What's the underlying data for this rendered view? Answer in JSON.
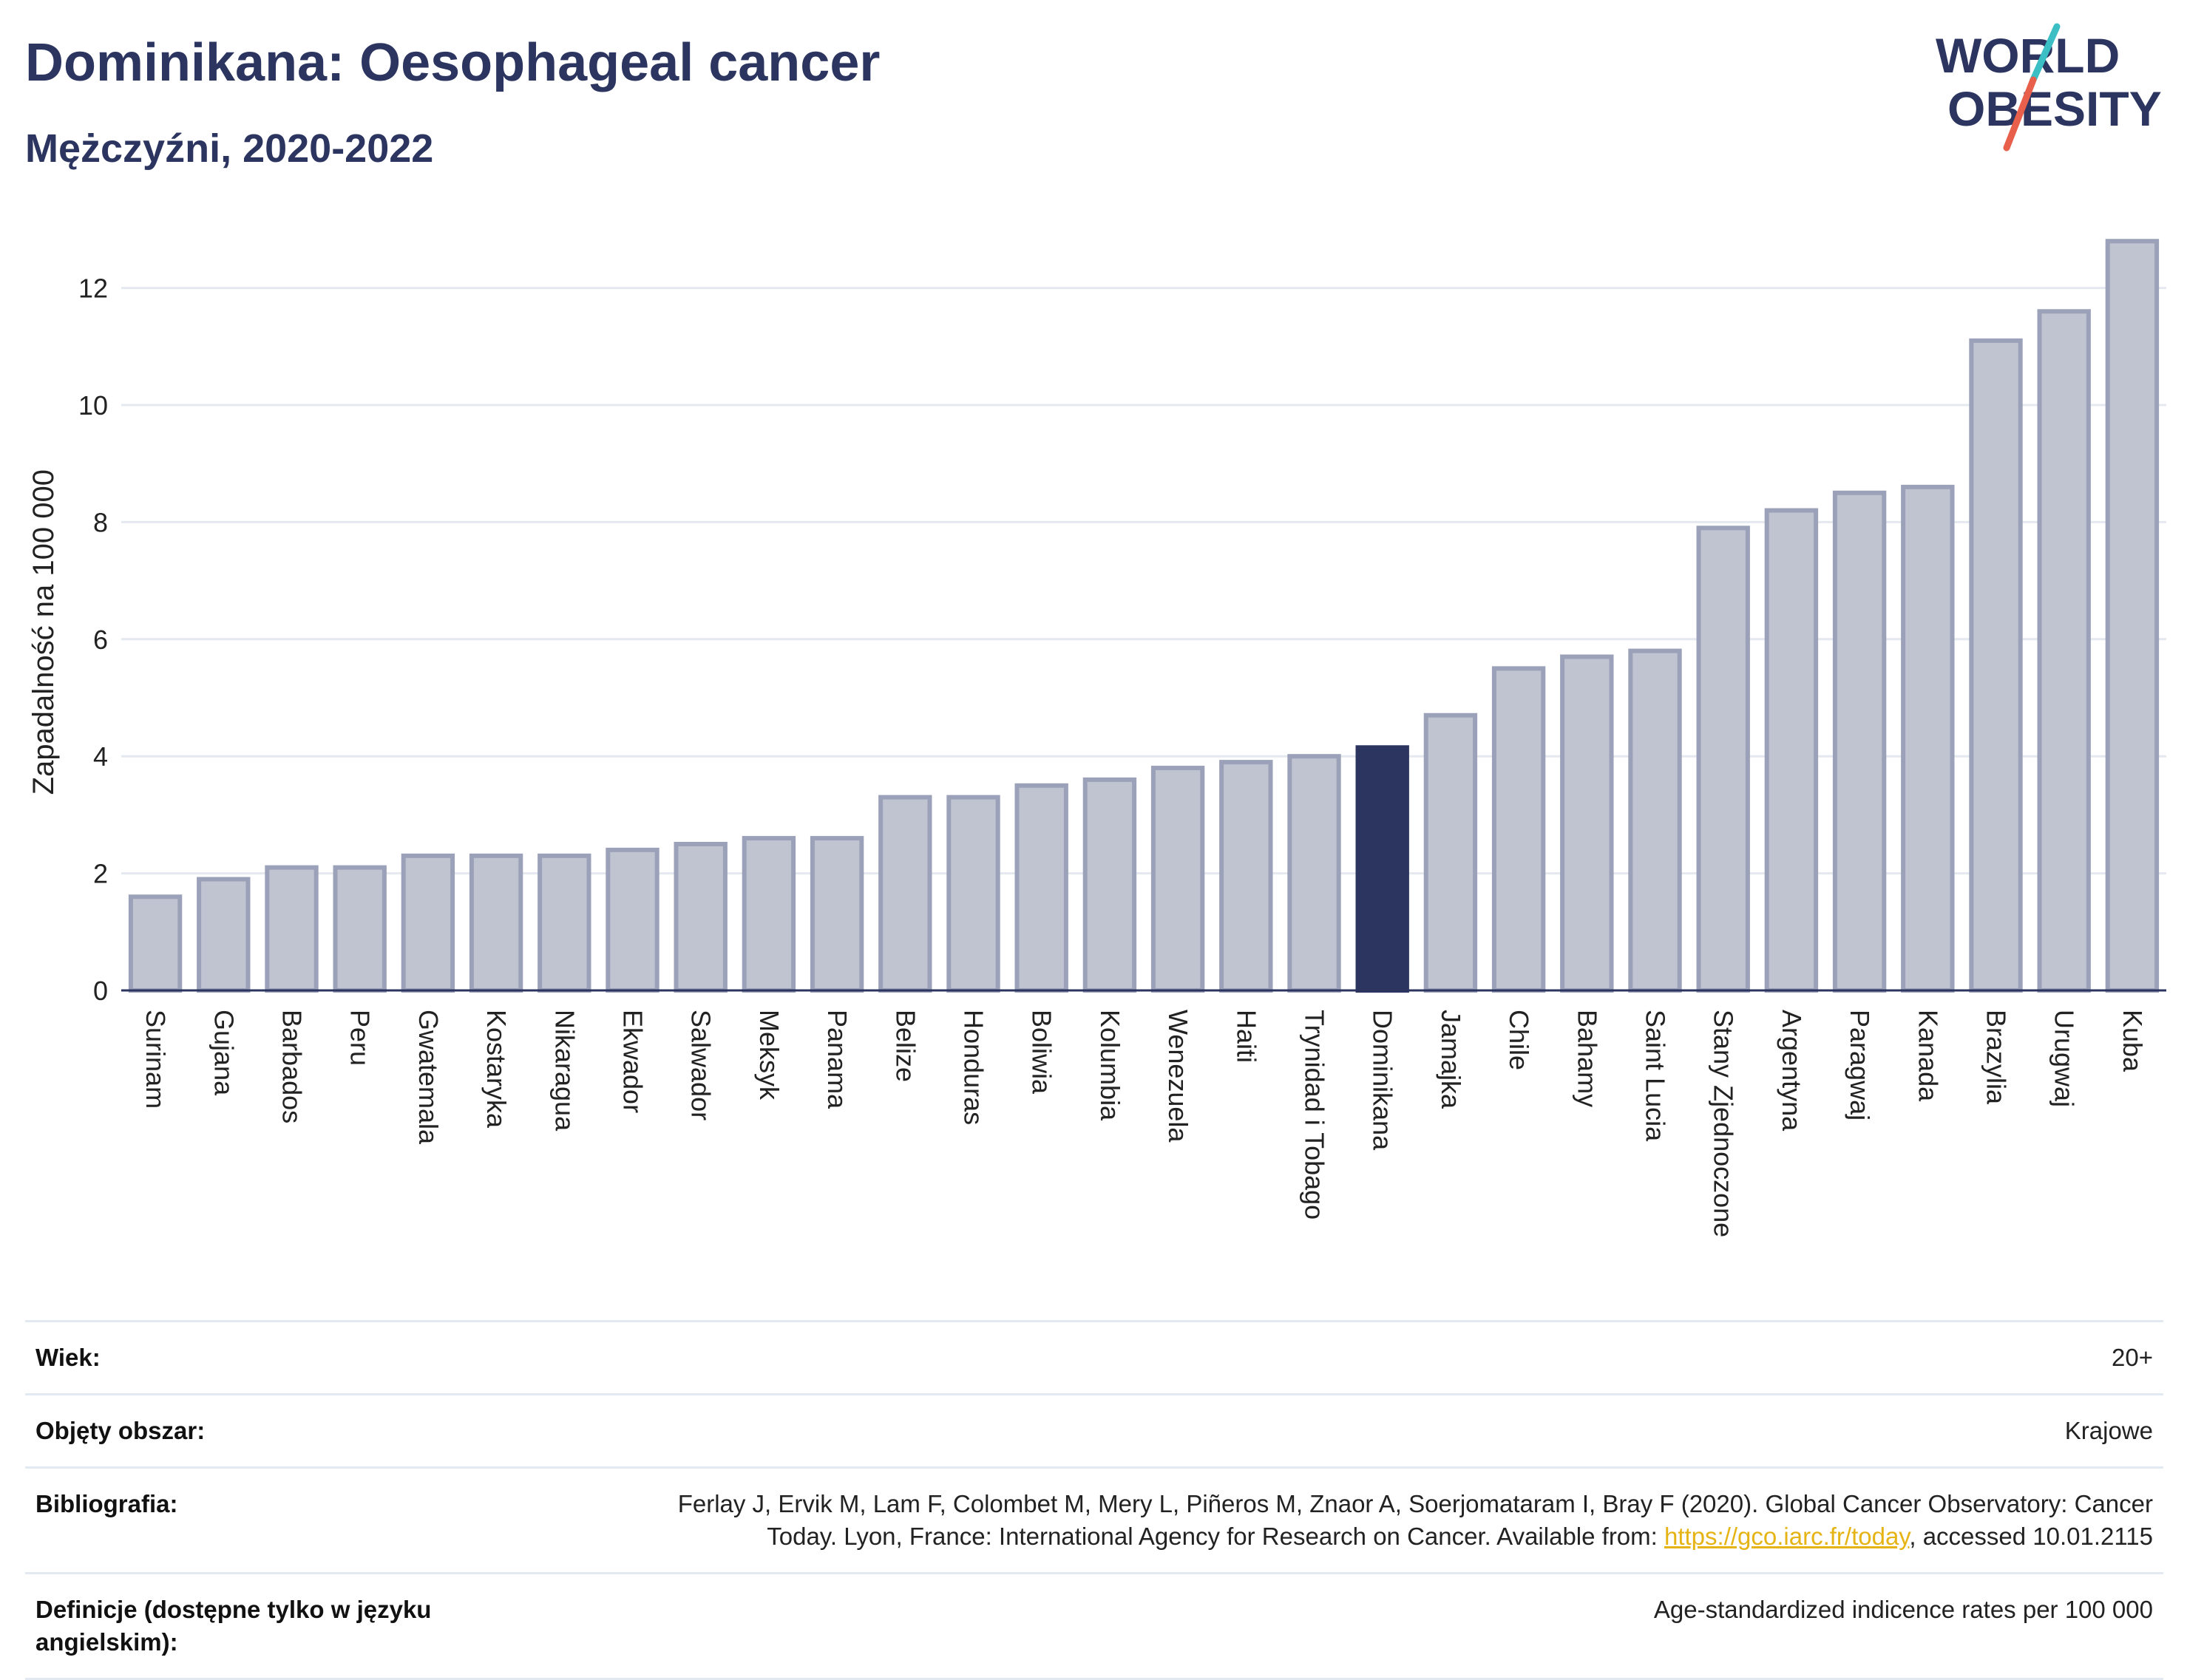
{
  "header": {
    "title": "Dominikana: Oesophageal cancer",
    "subtitle": "Mężczyźni, 2020-2022"
  },
  "logo": {
    "line1": "WORLD",
    "line2": "OBESITY",
    "text_color": "#2b3560",
    "slash_color_top": "#3cbfc4",
    "slash_color_bottom": "#e8604c"
  },
  "chart_data": {
    "type": "bar",
    "ylabel": "Zapadalność na 100 000",
    "xlabel": "",
    "ylim": [
      0,
      13
    ],
    "yticks": [
      0,
      2,
      4,
      6,
      8,
      10,
      12
    ],
    "grid": true,
    "highlight": "Dominikana",
    "colors": {
      "bar": "#c0c3d0",
      "bar_border": "#9ba1b8",
      "highlight": "#2b3560",
      "grid": "#e4e8ef",
      "axis": "#2b3560"
    },
    "categories": [
      "Surinam",
      "Gujana",
      "Barbados",
      "Peru",
      "Gwatemala",
      "Kostaryka",
      "Nikaragua",
      "Ekwador",
      "Salwador",
      "Meksyk",
      "Panama",
      "Belize",
      "Honduras",
      "Boliwia",
      "Kolumbia",
      "Wenezuela",
      "Haiti",
      "Trynidad i Tobago",
      "Dominikana",
      "Jamajka",
      "Chile",
      "Bahamy",
      "Saint Lucia",
      "Stany Zjednoczone",
      "Argentyna",
      "Paragwaj",
      "Kanada",
      "Brazylia",
      "Urugwaj",
      "Kuba"
    ],
    "values": [
      1.6,
      1.9,
      2.1,
      2.1,
      2.3,
      2.3,
      2.3,
      2.4,
      2.5,
      2.6,
      2.6,
      3.3,
      3.3,
      3.5,
      3.6,
      3.8,
      3.9,
      4.0,
      4.15,
      4.7,
      5.5,
      5.7,
      5.8,
      7.9,
      8.2,
      8.5,
      8.6,
      11.1,
      11.6,
      12.8
    ]
  },
  "meta": {
    "age_label": "Wiek:",
    "age_value": "20+",
    "area_label": "Objęty obszar:",
    "area_value": "Krajowe",
    "bib_label": "Bibliografia:",
    "bib_text_1": "Ferlay J, Ervik M, Lam F, Colombet M, Mery L, Piñeros M, Znaor A, Soerjomataram I, Bray F (2020). Global Cancer Observatory: Cancer",
    "bib_text_2": "Today. Lyon, France: International Agency for Research on Cancer. Available from: ",
    "bib_link": "https://gco.iarc.fr/today",
    "bib_text_3": ", accessed 10.01.2115",
    "def_label": "Definicje (dostępne tylko w języku angielskim):",
    "def_value": "Age-standardized indicence rates per 100 000"
  }
}
